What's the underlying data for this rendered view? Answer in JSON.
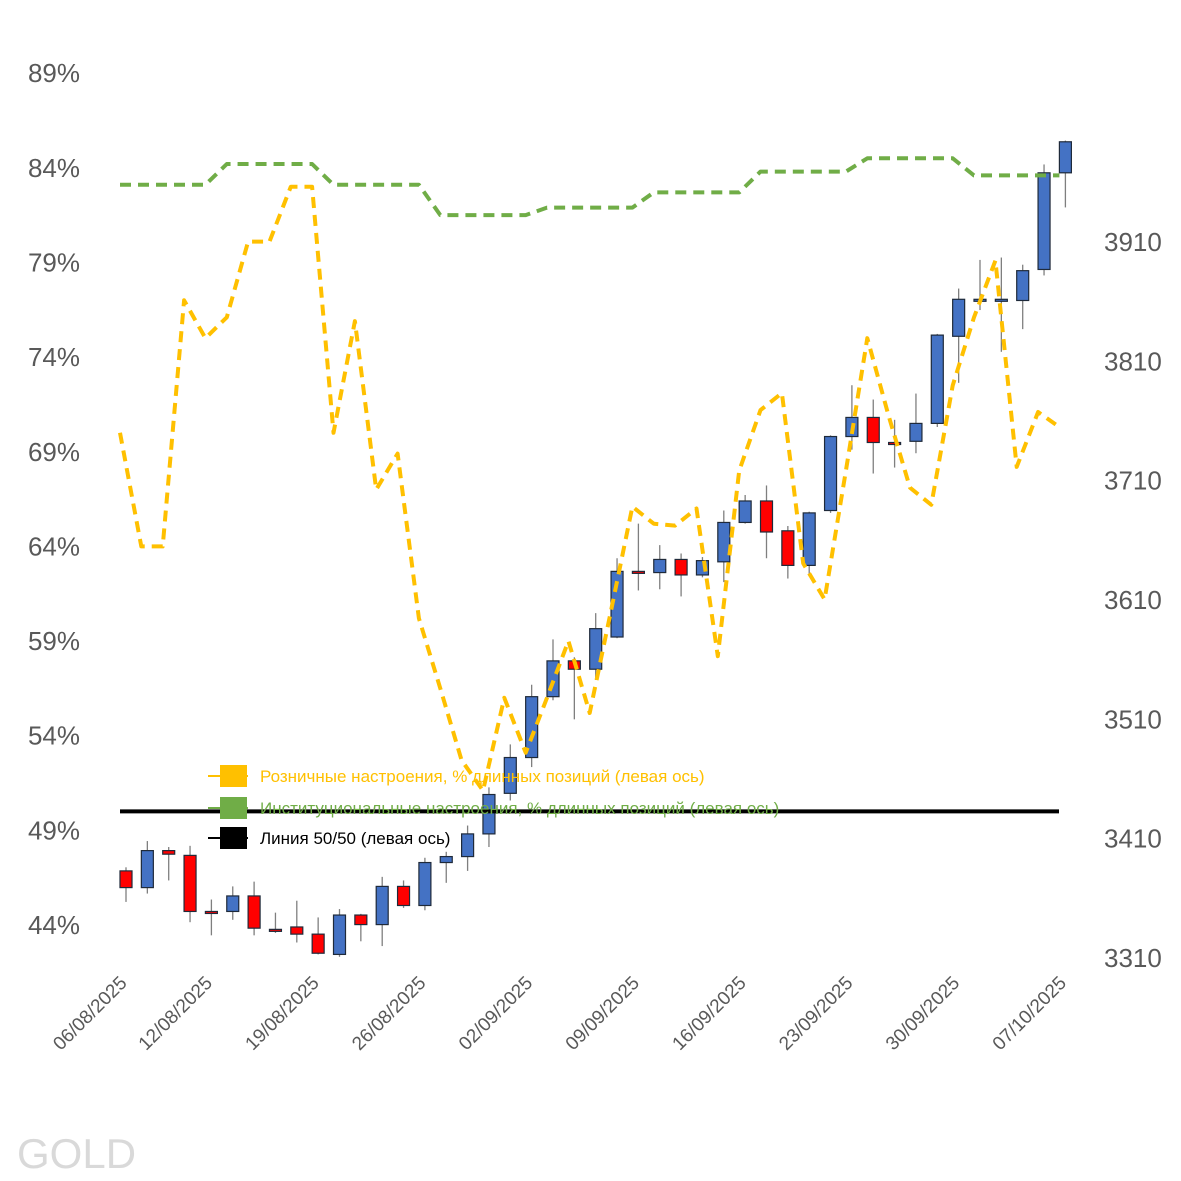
{
  "chart_data": {
    "type": "candlestick+line",
    "watermark": "GOLD",
    "left_axis": {
      "min": 44,
      "max": 89,
      "step": 5,
      "ticks": [
        "44%",
        "49%",
        "54%",
        "59%",
        "64%",
        "69%",
        "74%",
        "79%",
        "84%",
        "89%"
      ]
    },
    "right_axis": {
      "min": 3310,
      "max": 3910,
      "step": 100,
      "ticks": [
        "3310",
        "3410",
        "3510",
        "3610",
        "3710",
        "3810",
        "3910"
      ]
    },
    "x_ticks": [
      {
        "index": 0,
        "label": "06/08/2025"
      },
      {
        "index": 4,
        "label": "12/08/2025"
      },
      {
        "index": 9,
        "label": "19/08/2025"
      },
      {
        "index": 14,
        "label": "26/08/2025"
      },
      {
        "index": 19,
        "label": "02/09/2025"
      },
      {
        "index": 24,
        "label": "09/09/2025"
      },
      {
        "index": 29,
        "label": "16/09/2025"
      },
      {
        "index": 34,
        "label": "23/09/2025"
      },
      {
        "index": 39,
        "label": "30/09/2025"
      },
      {
        "index": 44,
        "label": "07/10/2025"
      }
    ],
    "candles_ohlc_right_axis": [
      [
        3383,
        3386,
        3357,
        3369
      ],
      [
        3369,
        3408,
        3364,
        3400
      ],
      [
        3400,
        3403,
        3375,
        3397
      ],
      [
        3396,
        3404,
        3340,
        3349
      ],
      [
        3349,
        3359,
        3329,
        3348
      ],
      [
        3349,
        3370,
        3342,
        3362
      ],
      [
        3362,
        3374,
        3329,
        3335
      ],
      [
        3334,
        3348,
        3331,
        3333
      ],
      [
        3336,
        3358,
        3323,
        3330
      ],
      [
        3330,
        3344,
        3313,
        3314
      ],
      [
        3313,
        3351,
        3311,
        3346
      ],
      [
        3346,
        3347,
        3324,
        3338
      ],
      [
        3338,
        3378,
        3320,
        3370
      ],
      [
        3370,
        3375,
        3352,
        3354
      ],
      [
        3354,
        3394,
        3350,
        3390
      ],
      [
        3390,
        3399,
        3373,
        3395
      ],
      [
        3395,
        3421,
        3383,
        3414
      ],
      [
        3414,
        3453,
        3403,
        3447
      ],
      [
        3448,
        3489,
        3442,
        3478
      ],
      [
        3478,
        3539,
        3470,
        3529
      ],
      [
        3529,
        3577,
        3526,
        3559
      ],
      [
        3559,
        3562,
        3510,
        3552
      ],
      [
        3552,
        3599,
        3543,
        3586
      ],
      [
        3579,
        3645,
        3578,
        3634
      ],
      [
        3634,
        3674,
        3618,
        3633
      ],
      [
        3633,
        3656,
        3619,
        3644
      ],
      [
        3644,
        3649,
        3613,
        3631
      ],
      [
        3631,
        3646,
        3629,
        3643
      ],
      [
        3642,
        3685,
        3625,
        3675
      ],
      [
        3675,
        3698,
        3674,
        3693
      ],
      [
        3693,
        3706,
        3645,
        3667
      ],
      [
        3668,
        3672,
        3628,
        3639
      ],
      [
        3639,
        3684,
        3631,
        3683
      ],
      [
        3685,
        3748,
        3683,
        3747
      ],
      [
        3747,
        3790,
        3736,
        3763
      ],
      [
        3763,
        3778,
        3716,
        3742
      ],
      [
        3742,
        3761,
        3721,
        3741
      ],
      [
        3743,
        3783,
        3733,
        3758
      ],
      [
        3758,
        3833,
        3755,
        3832
      ],
      [
        3831,
        3871,
        3792,
        3862
      ],
      [
        3862,
        3895,
        3853,
        3862
      ],
      [
        3862,
        3897,
        3818,
        3862
      ],
      [
        3861,
        3891,
        3837,
        3886
      ],
      [
        3887,
        3975,
        3882,
        3968
      ],
      [
        3968,
        3995,
        3939,
        3994
      ]
    ],
    "series": [
      {
        "name": "Розничные настроения, % длинных позиций (левая ось)",
        "color": "#FFC000",
        "axis": "left",
        "values": [
          70.0,
          64.0,
          64.0,
          77.0,
          75.0,
          76.1,
          80.1,
          80.1,
          83.0,
          83.0,
          70.0,
          75.9,
          67.0,
          68.9,
          60.2,
          56.5,
          52.7,
          51.1,
          56.0,
          53.1,
          56.0,
          59.0,
          55.2,
          60.6,
          66.1,
          65.2,
          65.1,
          66.0,
          58.2,
          68.0,
          71.2,
          72.1,
          63.1,
          61.2,
          68.0,
          75.0,
          70.9,
          67.1,
          66.2,
          72.5,
          76.1,
          79.1,
          68.2,
          71.1,
          70.3
        ]
      },
      {
        "name": "Институциональные настроения, % длинных позиций (левая ось)",
        "color": "#70AD47",
        "axis": "left",
        "values": [
          83.1,
          83.1,
          83.1,
          83.1,
          83.1,
          84.2,
          84.2,
          84.2,
          84.2,
          84.2,
          83.1,
          83.1,
          83.1,
          83.1,
          83.1,
          81.5,
          81.5,
          81.5,
          81.5,
          81.5,
          81.9,
          81.9,
          81.9,
          81.9,
          81.9,
          82.7,
          82.7,
          82.7,
          82.7,
          82.7,
          83.8,
          83.8,
          83.8,
          83.8,
          83.8,
          84.5,
          84.5,
          84.5,
          84.5,
          84.5,
          83.6,
          83.6,
          83.6,
          83.6,
          83.6
        ]
      },
      {
        "name": "Линия 50/50 (левая ось)",
        "color": "#000000",
        "axis": "left",
        "values_constant": 50
      }
    ],
    "up_color": "#4472C4",
    "down_color": "#FF0000",
    "legend_placement": "center-bottom-left inside plot"
  }
}
